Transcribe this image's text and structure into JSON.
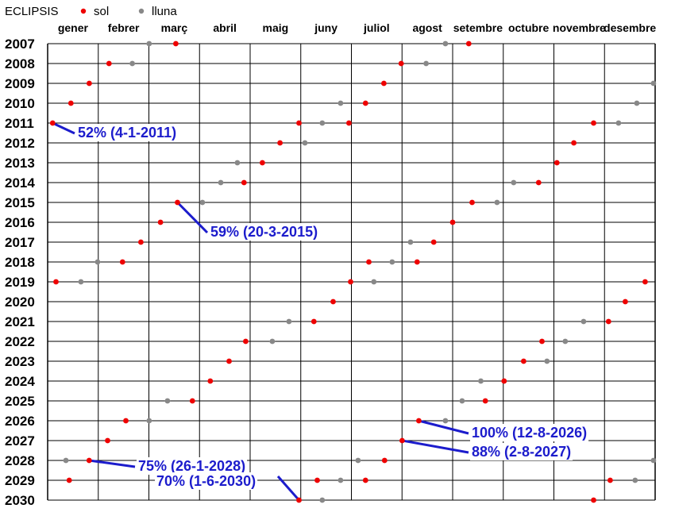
{
  "chart_data": {
    "type": "scatter",
    "title": "ECLIPSIS",
    "months": [
      "gener",
      "febrer",
      "març",
      "abril",
      "maig",
      "juny",
      "juliol",
      "agost",
      "setembre",
      "octubre",
      "novembre",
      "desembre"
    ],
    "years": [
      2007,
      2008,
      2009,
      2010,
      2011,
      2012,
      2013,
      2014,
      2015,
      2016,
      2017,
      2018,
      2019,
      2020,
      2021,
      2022,
      2023,
      2024,
      2025,
      2026,
      2027,
      2028,
      2029,
      2030
    ],
    "series": [
      {
        "name": "sol",
        "color": "#ee0000",
        "points": [
          {
            "date": "2007-03-19"
          },
          {
            "date": "2007-09-11"
          },
          {
            "date": "2008-02-07"
          },
          {
            "date": "2008-08-01"
          },
          {
            "date": "2009-01-26"
          },
          {
            "date": "2009-07-22"
          },
          {
            "date": "2010-01-15"
          },
          {
            "date": "2010-07-11"
          },
          {
            "date": "2011-01-04"
          },
          {
            "date": "2011-06-01"
          },
          {
            "date": "2011-07-01"
          },
          {
            "date": "2011-11-25"
          },
          {
            "date": "2012-05-20"
          },
          {
            "date": "2012-11-13"
          },
          {
            "date": "2013-05-10"
          },
          {
            "date": "2013-11-03"
          },
          {
            "date": "2014-04-29"
          },
          {
            "date": "2014-10-23"
          },
          {
            "date": "2015-03-20"
          },
          {
            "date": "2015-09-13"
          },
          {
            "date": "2016-03-09"
          },
          {
            "date": "2016-09-01"
          },
          {
            "date": "2017-02-26"
          },
          {
            "date": "2017-08-21"
          },
          {
            "date": "2018-02-15"
          },
          {
            "date": "2018-07-13"
          },
          {
            "date": "2018-08-11"
          },
          {
            "date": "2019-01-06"
          },
          {
            "date": "2019-07-02"
          },
          {
            "date": "2019-12-26"
          },
          {
            "date": "2020-06-21"
          },
          {
            "date": "2020-12-14"
          },
          {
            "date": "2021-06-10"
          },
          {
            "date": "2021-12-04"
          },
          {
            "date": "2022-04-30"
          },
          {
            "date": "2022-10-25"
          },
          {
            "date": "2023-04-20"
          },
          {
            "date": "2023-10-14"
          },
          {
            "date": "2024-04-08"
          },
          {
            "date": "2024-10-02"
          },
          {
            "date": "2025-03-29"
          },
          {
            "date": "2025-09-21"
          },
          {
            "date": "2026-02-17"
          },
          {
            "date": "2026-08-12"
          },
          {
            "date": "2027-02-06"
          },
          {
            "date": "2027-08-02"
          },
          {
            "date": "2028-01-26"
          },
          {
            "date": "2028-07-22"
          },
          {
            "date": "2029-01-14"
          },
          {
            "date": "2029-06-12"
          },
          {
            "date": "2029-07-11"
          },
          {
            "date": "2029-12-05"
          },
          {
            "date": "2030-06-01"
          },
          {
            "date": "2030-11-25"
          }
        ]
      },
      {
        "name": "lluna",
        "color": "#888888",
        "points": [
          {
            "date": "2007-03-03"
          },
          {
            "date": "2007-08-28"
          },
          {
            "date": "2008-02-21"
          },
          {
            "date": "2008-08-16"
          },
          {
            "date": "2009-12-31"
          },
          {
            "date": "2010-06-26"
          },
          {
            "date": "2010-12-21"
          },
          {
            "date": "2011-06-15"
          },
          {
            "date": "2011-12-10"
          },
          {
            "date": "2012-06-04"
          },
          {
            "date": "2013-04-25"
          },
          {
            "date": "2014-04-15"
          },
          {
            "date": "2014-10-08"
          },
          {
            "date": "2015-04-04"
          },
          {
            "date": "2015-09-28"
          },
          {
            "date": "2017-08-07"
          },
          {
            "date": "2018-01-31"
          },
          {
            "date": "2018-07-27"
          },
          {
            "date": "2019-01-21"
          },
          {
            "date": "2019-07-16"
          },
          {
            "date": "2021-05-26"
          },
          {
            "date": "2021-11-19"
          },
          {
            "date": "2022-05-16"
          },
          {
            "date": "2022-11-08"
          },
          {
            "date": "2023-10-28"
          },
          {
            "date": "2024-09-18"
          },
          {
            "date": "2025-03-14"
          },
          {
            "date": "2025-09-07"
          },
          {
            "date": "2026-03-03"
          },
          {
            "date": "2026-08-28"
          },
          {
            "date": "2028-01-12"
          },
          {
            "date": "2028-07-06"
          },
          {
            "date": "2028-12-31"
          },
          {
            "date": "2029-06-26"
          },
          {
            "date": "2029-12-20"
          },
          {
            "date": "2030-06-15"
          }
        ]
      }
    ],
    "annotations": [
      {
        "text": "52% (4-1-2011)",
        "date": "2011-01-04",
        "year": 2011
      },
      {
        "text": "59% (20-3-2015)",
        "date": "2015-03-20",
        "year": 2015
      },
      {
        "text": "100% (12-8-2026)",
        "date": "2026-08-12",
        "year": 2026
      },
      {
        "text": "88% (2-8-2027)",
        "date": "2027-08-02",
        "year": 2027
      },
      {
        "text": "75% (26-1-2028)",
        "date": "2028-01-26",
        "year": 2028
      },
      {
        "text": "70% (1-6-2030)",
        "date": "2030-06-01",
        "year": 2030
      }
    ],
    "grid": true,
    "legend": "top-left"
  }
}
